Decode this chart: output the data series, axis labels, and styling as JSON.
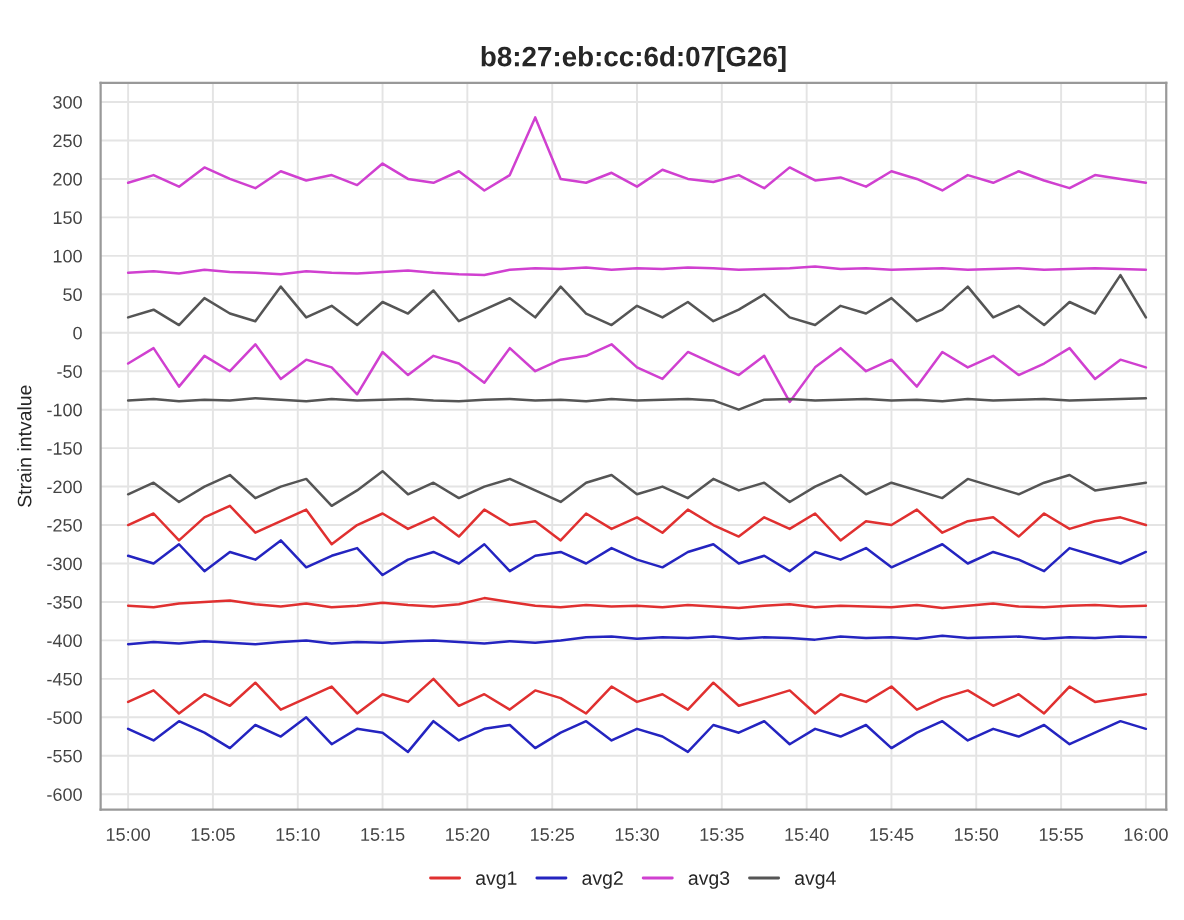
{
  "chart_data": {
    "type": "line",
    "title": "b8:27:eb:cc:6d:07[G26]",
    "ylabel": "Strain intvalue",
    "x": [
      15.0,
      15.025,
      15.05,
      15.075,
      15.1,
      15.125,
      15.15,
      15.175,
      15.2,
      15.225,
      15.25,
      15.275,
      15.3,
      15.325,
      15.35,
      15.375,
      15.4,
      15.425,
      15.45,
      15.475,
      15.5,
      15.525,
      15.55,
      15.575,
      15.6,
      15.625,
      15.65,
      15.675,
      15.7,
      15.725,
      15.75,
      15.775,
      15.8,
      15.825,
      15.85,
      15.875,
      15.9,
      15.925,
      15.95,
      15.975,
      16.0
    ],
    "xlim": [
      14.973,
      16.02
    ],
    "xticks": [
      {
        "value": 15.0,
        "label": "15:00"
      },
      {
        "value": 15.0833,
        "label": "15:05"
      },
      {
        "value": 15.1667,
        "label": "15:10"
      },
      {
        "value": 15.25,
        "label": "15:15"
      },
      {
        "value": 15.3333,
        "label": "15:20"
      },
      {
        "value": 15.4167,
        "label": "15:25"
      },
      {
        "value": 15.5,
        "label": "15:30"
      },
      {
        "value": 15.5833,
        "label": "15:35"
      },
      {
        "value": 15.6667,
        "label": "15:40"
      },
      {
        "value": 15.75,
        "label": "15:45"
      },
      {
        "value": 15.8333,
        "label": "15:50"
      },
      {
        "value": 15.9167,
        "label": "15:55"
      },
      {
        "value": 16.0,
        "label": "16:00"
      }
    ],
    "ylim": [
      -620,
      325
    ],
    "yticks": [
      -600,
      -550,
      -500,
      -450,
      -400,
      -350,
      -300,
      -250,
      -200,
      -150,
      -100,
      -50,
      0,
      50,
      100,
      150,
      200,
      250,
      300
    ],
    "grid": true,
    "legend": "bottom",
    "marker": "none",
    "line_style": "solid",
    "series": [
      {
        "name": "avg1",
        "color": "#e03030",
        "values": [
          -250,
          -235,
          -270,
          -240,
          -225,
          -260,
          -245,
          -230,
          -275,
          -250,
          -235,
          -255,
          -240,
          -265,
          -230,
          -250,
          -245,
          -270,
          -235,
          -255,
          -240,
          -260,
          -230,
          -250,
          -265,
          -240,
          -255,
          -235,
          -270,
          -245,
          -250,
          -230,
          -260,
          -245,
          -240,
          -265,
          -235,
          -255,
          -245,
          -240,
          -250
        ]
      },
      {
        "color": "#e03030",
        "values": [
          -355,
          -357,
          -352,
          -350,
          -348,
          -353,
          -356,
          -352,
          -357,
          -355,
          -351,
          -354,
          -356,
          -353,
          -345,
          -350,
          -355,
          -357,
          -354,
          -356,
          -355,
          -357,
          -354,
          -356,
          -358,
          -355,
          -353,
          -357,
          -355,
          -356,
          -357,
          -354,
          -358,
          -355,
          -352,
          -356,
          -357,
          -355,
          -354,
          -356,
          -355
        ]
      },
      {
        "color": "#e03030",
        "values": [
          -480,
          -465,
          -495,
          -470,
          -485,
          -455,
          -490,
          -475,
          -460,
          -495,
          -470,
          -480,
          -450,
          -485,
          -470,
          -490,
          -465,
          -475,
          -495,
          -460,
          -480,
          -470,
          -490,
          -455,
          -485,
          -475,
          -465,
          -495,
          -470,
          -480,
          -460,
          -490,
          -475,
          -465,
          -485,
          -470,
          -495,
          -460,
          -480,
          -475,
          -470
        ]
      },
      {
        "name": "avg2",
        "color": "#2424c0",
        "values": [
          -290,
          -300,
          -275,
          -310,
          -285,
          -295,
          -270,
          -305,
          -290,
          -280,
          -315,
          -295,
          -285,
          -300,
          -275,
          -310,
          -290,
          -285,
          -300,
          -280,
          -295,
          -305,
          -285,
          -275,
          -300,
          -290,
          -310,
          -285,
          -295,
          -280,
          -305,
          -290,
          -275,
          -300,
          -285,
          -295,
          -310,
          -280,
          -290,
          -300,
          -285
        ]
      },
      {
        "color": "#2424c0",
        "values": [
          -405,
          -402,
          -404,
          -401,
          -403,
          -405,
          -402,
          -400,
          -404,
          -402,
          -403,
          -401,
          -400,
          -402,
          -404,
          -401,
          -403,
          -400,
          -396,
          -395,
          -398,
          -396,
          -397,
          -395,
          -398,
          -396,
          -397,
          -399,
          -395,
          -397,
          -396,
          -398,
          -394,
          -397,
          -396,
          -395,
          -398,
          -396,
          -397,
          -395,
          -396
        ]
      },
      {
        "color": "#2424c0",
        "values": [
          -515,
          -530,
          -505,
          -520,
          -540,
          -510,
          -525,
          -500,
          -535,
          -515,
          -520,
          -545,
          -505,
          -530,
          -515,
          -510,
          -540,
          -520,
          -505,
          -530,
          -515,
          -525,
          -545,
          -510,
          -520,
          -505,
          -535,
          -515,
          -525,
          -510,
          -540,
          -520,
          -505,
          -530,
          -515,
          -525,
          -510,
          -535,
          -520,
          -505,
          -515
        ]
      },
      {
        "name": "avg3",
        "color": "#d040d0",
        "values": [
          195,
          205,
          190,
          215,
          200,
          188,
          210,
          198,
          205,
          192,
          220,
          200,
          195,
          210,
          185,
          205,
          280,
          200,
          195,
          208,
          190,
          212,
          200,
          196,
          205,
          188,
          215,
          198,
          202,
          190,
          210,
          200,
          185,
          205,
          195,
          210,
          198,
          188,
          205,
          200,
          195
        ]
      },
      {
        "color": "#d040d0",
        "values": [
          78,
          80,
          77,
          82,
          79,
          78,
          76,
          80,
          78,
          77,
          79,
          81,
          78,
          76,
          75,
          82,
          84,
          83,
          85,
          82,
          84,
          83,
          85,
          84,
          82,
          83,
          84,
          86,
          83,
          84,
          82,
          83,
          84,
          82,
          83,
          84,
          82,
          83,
          84,
          83,
          82
        ]
      },
      {
        "color": "#d040d0",
        "values": [
          -40,
          -20,
          -70,
          -30,
          -50,
          -15,
          -60,
          -35,
          -45,
          -80,
          -25,
          -55,
          -30,
          -40,
          -65,
          -20,
          -50,
          -35,
          -30,
          -15,
          -45,
          -60,
          -25,
          -40,
          -55,
          -30,
          -90,
          -45,
          -20,
          -50,
          -35,
          -70,
          -25,
          -45,
          -30,
          -55,
          -40,
          -20,
          -60,
          -35,
          -45
        ]
      },
      {
        "name": "avg4",
        "color": "#555555",
        "values": [
          20,
          30,
          10,
          45,
          25,
          15,
          60,
          20,
          35,
          10,
          40,
          25,
          55,
          15,
          30,
          45,
          20,
          60,
          25,
          10,
          35,
          20,
          40,
          15,
          30,
          50,
          20,
          10,
          35,
          25,
          45,
          15,
          30,
          60,
          20,
          35,
          10,
          40,
          25,
          75,
          20
        ]
      },
      {
        "color": "#555555",
        "values": [
          -88,
          -86,
          -89,
          -87,
          -88,
          -85,
          -87,
          -89,
          -86,
          -88,
          -87,
          -86,
          -88,
          -89,
          -87,
          -86,
          -88,
          -87,
          -89,
          -86,
          -88,
          -87,
          -86,
          -88,
          -100,
          -87,
          -86,
          -88,
          -87,
          -86,
          -88,
          -87,
          -89,
          -86,
          -88,
          -87,
          -86,
          -88,
          -87,
          -86,
          -85
        ]
      },
      {
        "color": "#555555",
        "values": [
          -210,
          -195,
          -220,
          -200,
          -185,
          -215,
          -200,
          -190,
          -225,
          -205,
          -180,
          -210,
          -195,
          -215,
          -200,
          -190,
          -205,
          -220,
          -195,
          -185,
          -210,
          -200,
          -215,
          -190,
          -205,
          -195,
          -220,
          -200,
          -185,
          -210,
          -195,
          -205,
          -215,
          -190,
          -200,
          -210,
          -195,
          -185,
          -205,
          -200,
          -195
        ]
      }
    ]
  }
}
